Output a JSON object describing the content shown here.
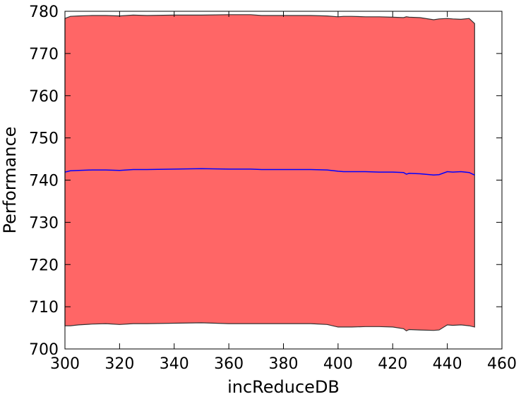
{
  "chart_data": {
    "type": "area",
    "title": "",
    "xlabel": "incReduceDB",
    "ylabel": "Performance",
    "xlim": [
      300,
      460
    ],
    "ylim": [
      700,
      780
    ],
    "xticks": [
      300,
      320,
      340,
      360,
      380,
      400,
      420,
      440,
      460
    ],
    "yticks": [
      700,
      710,
      720,
      730,
      740,
      750,
      760,
      770,
      780
    ],
    "grid": false,
    "legend": "none",
    "colors": {
      "band_fill": "#ff6666",
      "band_edge": "#333333",
      "mean_line": "#0000ff"
    },
    "x": [
      300,
      302,
      305,
      310,
      315,
      320,
      325,
      330,
      340,
      350,
      360,
      368,
      372,
      380,
      390,
      396,
      400,
      402,
      405,
      410,
      415,
      420,
      424,
      425,
      426,
      430,
      435,
      437,
      440,
      442,
      445,
      448,
      450
    ],
    "mean": [
      741.9,
      742.2,
      742.3,
      742.4,
      742.4,
      742.3,
      742.5,
      742.5,
      742.6,
      742.7,
      742.6,
      742.6,
      742.5,
      742.5,
      742.5,
      742.4,
      742.1,
      742.0,
      742.0,
      742.0,
      741.9,
      741.9,
      741.8,
      741.4,
      741.6,
      741.5,
      741.2,
      741.3,
      742.0,
      741.9,
      742.0,
      741.8,
      741.2
    ],
    "upper": [
      778.3,
      778.8,
      778.9,
      779.0,
      779.0,
      778.9,
      779.1,
      779.0,
      779.1,
      779.1,
      779.2,
      779.2,
      779.0,
      779.0,
      779.0,
      778.9,
      778.7,
      778.8,
      778.8,
      778.7,
      778.7,
      778.6,
      778.5,
      778.7,
      778.6,
      778.5,
      778.0,
      778.2,
      778.3,
      778.2,
      778.1,
      778.3,
      777.1
    ],
    "lower": [
      705.5,
      705.5,
      705.7,
      705.9,
      706.0,
      705.8,
      706.0,
      706.0,
      706.1,
      706.2,
      706.0,
      706.0,
      706.0,
      706.0,
      706.0,
      705.8,
      705.2,
      705.2,
      705.2,
      705.3,
      705.3,
      705.2,
      704.8,
      704.3,
      704.6,
      704.5,
      704.4,
      704.5,
      705.7,
      705.6,
      705.7,
      705.5,
      705.2
    ]
  }
}
